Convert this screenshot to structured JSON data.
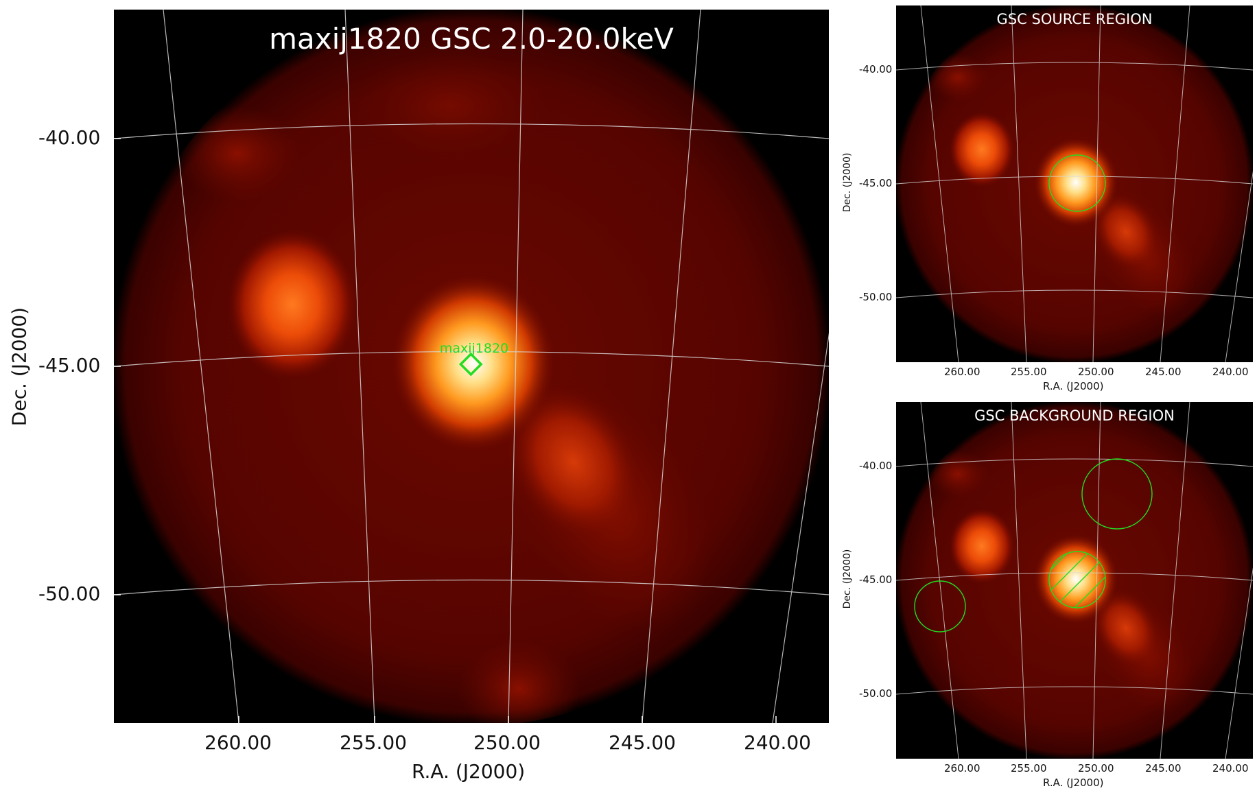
{
  "main_panel": {
    "title": "maxij1820 GSC 2.0-20.0keV",
    "source_label": "maxij1820",
    "x_label": "R.A. (J2000)",
    "y_label": "Dec. (J2000)",
    "x_ticks": [
      "260.00",
      "255.00",
      "250.00",
      "245.00",
      "240.00"
    ],
    "y_ticks": [
      "-40.00",
      "-45.00",
      "-50.00"
    ]
  },
  "source_panel": {
    "title": "GSC SOURCE REGION",
    "x_label": "R.A. (J2000)",
    "y_label": "Dec. (J2000)",
    "x_ticks": [
      "260.00",
      "255.00",
      "250.00",
      "245.00",
      "240.00"
    ],
    "y_ticks": [
      "-40.00",
      "-45.00",
      "-50.00"
    ]
  },
  "background_panel": {
    "title": "GSC BACKGROUND REGION",
    "x_label": "R.A. (J2000)",
    "y_label": "Dec. (J2000)",
    "x_ticks": [
      "260.00",
      "255.00",
      "250.00",
      "245.00",
      "240.00"
    ],
    "y_ticks": [
      "-40.00",
      "-45.00",
      "-50.00"
    ]
  },
  "colors": {
    "region_green": "#22dd22",
    "grid_line": "#d8d8d8",
    "field_base": "#5a0500"
  }
}
